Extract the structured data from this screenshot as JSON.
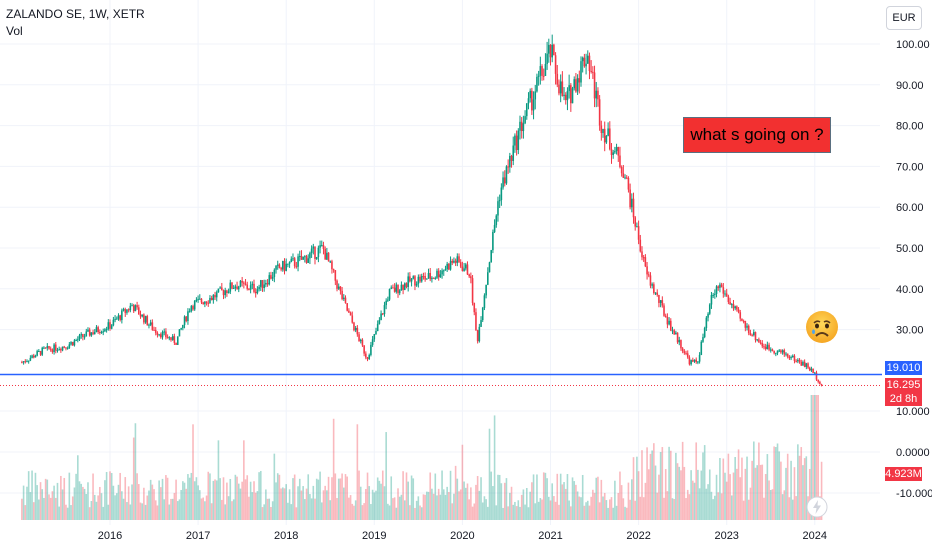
{
  "header": {
    "symbol_line": "ZALANDO SE, 1W, XETR",
    "indicator": "Vol"
  },
  "currency_button": "EUR",
  "annotation": {
    "text": "what s going on ?"
  },
  "emoji": {
    "name": "sad-tear-face-icon"
  },
  "price_axis": {
    "ticks": [
      "100.00",
      "90.00",
      "80.00",
      "70.00",
      "60.00",
      "50.00",
      "40.00",
      "30.00"
    ]
  },
  "volume_axis": {
    "ticks": [
      "10.000",
      "0.0000",
      "-10.000"
    ]
  },
  "time_axis": {
    "labels": [
      "2016",
      "2017",
      "2018",
      "2019",
      "2020",
      "2021",
      "2022",
      "2023",
      "2024"
    ]
  },
  "horizontal_line": {
    "value": 19.01,
    "label": "19.010",
    "color": "#2962ff"
  },
  "last_price": {
    "value": 16.295,
    "label": "16.295",
    "countdown": "2d 8h",
    "color": "#f23645"
  },
  "volume_badge": {
    "label": "4.923M",
    "color": "#f23645"
  },
  "bolt_icon": {
    "name": "lightning-bolt-icon"
  },
  "colors": {
    "up": "#089981",
    "down": "#f23645",
    "grid": "#f0f3fa"
  },
  "chart_data": {
    "type": "candlestick",
    "title": "ZALANDO SE, 1W, XETR",
    "x_range": [
      "2015-01",
      "2024-02"
    ],
    "ylim": [
      12,
      106
    ],
    "series": [
      {
        "points": [
          [
            "2015-01",
            22
          ],
          [
            "2015-04",
            25
          ],
          [
            "2015-07",
            26
          ],
          [
            "2015-10",
            29
          ],
          [
            "2016-01",
            31
          ],
          [
            "2016-04",
            36
          ],
          [
            "2016-07",
            30
          ],
          [
            "2016-10",
            27
          ],
          [
            "2016-12",
            36
          ],
          [
            "2017-03",
            38
          ],
          [
            "2017-06",
            41
          ],
          [
            "2017-09",
            40
          ],
          [
            "2017-12",
            45
          ],
          [
            "2018-03",
            47
          ],
          [
            "2018-06",
            50
          ],
          [
            "2018-09",
            36
          ],
          [
            "2018-12",
            23
          ],
          [
            "2019-03",
            39
          ],
          [
            "2019-06",
            42
          ],
          [
            "2019-09",
            43
          ],
          [
            "2019-12",
            47
          ],
          [
            "2020-02",
            44
          ],
          [
            "2020-03",
            27
          ],
          [
            "2020-06",
            63
          ],
          [
            "2020-09",
            80
          ],
          [
            "2021-01",
            98
          ],
          [
            "2021-03",
            85
          ],
          [
            "2021-06",
            98
          ],
          [
            "2021-08",
            80
          ],
          [
            "2021-11",
            69
          ],
          [
            "2022-02",
            44
          ],
          [
            "2022-05",
            32
          ],
          [
            "2022-08",
            22
          ],
          [
            "2022-09",
            22
          ],
          [
            "2022-11",
            38
          ],
          [
            "2022-12",
            41
          ],
          [
            "2023-03",
            32
          ],
          [
            "2023-06",
            26
          ],
          [
            "2023-09",
            24
          ],
          [
            "2023-12",
            21
          ],
          [
            "2024-01",
            19
          ],
          [
            "2024-02",
            16.295
          ]
        ]
      }
    ],
    "volume": {
      "max_relative_peak": "2024-01"
    },
    "grid": true
  }
}
